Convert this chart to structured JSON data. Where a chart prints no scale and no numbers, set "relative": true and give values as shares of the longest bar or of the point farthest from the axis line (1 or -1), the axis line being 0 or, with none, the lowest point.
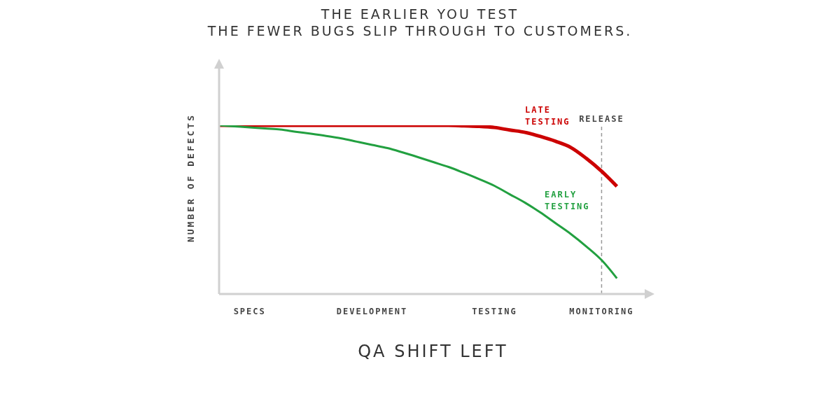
{
  "chart_data": {
    "type": "line",
    "title": "THE EARLIER YOU TEST\nTHE FEWER BUGS SLIP THROUGH TO CUSTOMERS.",
    "xlabel": "QA SHIFT LEFT",
    "ylabel": "NUMBER OF DEFECTS",
    "relative": true,
    "categories": [
      null,
      null,
      "SPECS",
      null,
      null,
      null,
      null,
      null,
      null,
      null,
      "DEVELOPMENT",
      null,
      null,
      null,
      null,
      null,
      null,
      null,
      "TESTING",
      null,
      null,
      null,
      null,
      null,
      null,
      "MONITORING",
      null,
      null,
      null
    ],
    "series": [
      {
        "name": "LATE TESTING",
        "color": "#cc0000",
        "values": [
          1,
          1,
          1,
          1,
          1,
          1,
          1,
          1,
          1,
          1,
          1,
          1,
          1,
          1,
          1,
          1,
          0.997,
          0.994,
          0.987,
          0.972,
          0.958,
          0.934,
          0.905,
          0.868,
          0.804,
          0.728,
          0.638,
          null,
          null
        ]
      },
      {
        "name": "EARLY TESTING",
        "color": "#22a040",
        "values": [
          1,
          0.994,
          0.988,
          0.981,
          0.975,
          0.962,
          0.95,
          0.937,
          0.922,
          0.903,
          0.884,
          0.865,
          0.839,
          0.811,
          0.782,
          0.753,
          0.718,
          0.681,
          0.641,
          0.591,
          0.541,
          0.483,
          0.419,
          0.355,
          0.282,
          0.201,
          0.093,
          null,
          null
        ]
      }
    ],
    "ref_lines": [
      {
        "axis": "x",
        "value": "MONITORING",
        "label": "RELEASE",
        "color": "#999999",
        "line_style": "dashed"
      }
    ],
    "grid": false,
    "legend": false,
    "marker": "none",
    "line_style": "solid"
  }
}
